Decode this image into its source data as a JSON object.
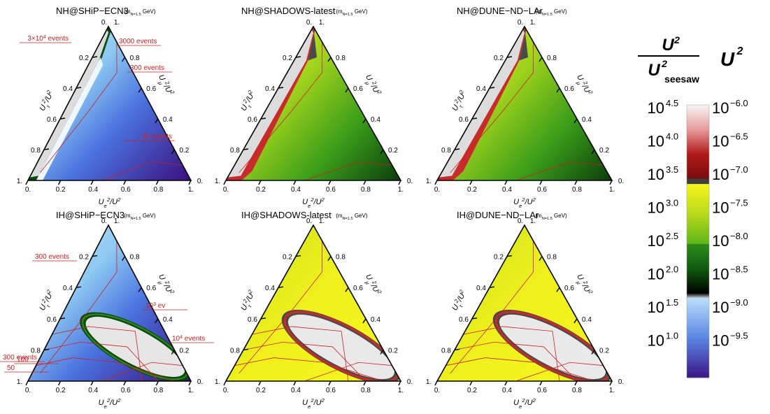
{
  "panels": [
    {
      "title": "NH@SHiP−ECN3",
      "mass": "(m_N=1.5 GeV)",
      "scheme": "blue",
      "events": [
        {
          "text": "3×10^4 events"
        },
        {
          "text": "3000 events"
        },
        {
          "text": "300 events"
        },
        {
          "text": "30 events"
        }
      ]
    },
    {
      "title": "NH@SHADOWS-latest",
      "mass": "(m_N=1.5 GeV)",
      "scheme": "green",
      "events": []
    },
    {
      "title": "NH@DUNE−ND−LAr",
      "mass": "(m_N=1.5 GeV)",
      "scheme": "green",
      "events": []
    },
    {
      "title": "IH@SHiP−ECN3",
      "mass": "(m_N=1.5 GeV)",
      "scheme": "blue",
      "events": [
        {
          "text": "300 events"
        },
        {
          "text": "10^3 ev"
        },
        {
          "text": "300 events"
        },
        {
          "text": "10^4 events"
        },
        {
          "text": "100"
        },
        {
          "text": "50"
        }
      ]
    },
    {
      "title": "IH@SHADOWS-latest",
      "mass": "(m_N=1.5 GeV)",
      "scheme": "yellow",
      "events": []
    },
    {
      "title": "IH@DUNE−ND−LAr",
      "mass": "(m_N=1.5 GeV)",
      "scheme": "yellow",
      "events": []
    }
  ],
  "axis_labels": {
    "x": "U_e^2/U^2",
    "left": "U_τ^2/U^2",
    "right": "U_μ^2/U^2"
  },
  "ticks_bottom": [
    "0.",
    "0.2",
    "0.4",
    "0.6",
    "0.8",
    "1."
  ],
  "ticks_left": [
    "0.8",
    "0.6",
    "0.4",
    "0.2"
  ],
  "ticks_right": [
    "0.8",
    "0.6",
    "0.4",
    "0.2"
  ],
  "corner_labels": {
    "top": "0.",
    "top_right": "1.",
    "left": "1.",
    "right": "0."
  },
  "colorbar": {
    "title_left_num": "U²",
    "title_left_den": "U²",
    "title_left_den_sub": "seesaw",
    "title_right": "U²",
    "left_labels": [
      {
        "base": "10",
        "exp": "4.5"
      },
      {
        "base": "10",
        "exp": "4.0"
      },
      {
        "base": "10",
        "exp": "3.5"
      },
      {
        "base": "10",
        "exp": "3.0"
      },
      {
        "base": "10",
        "exp": "2.5"
      },
      {
        "base": "10",
        "exp": "2.0"
      },
      {
        "base": "10",
        "exp": "1.5"
      },
      {
        "base": "10",
        "exp": "1.0"
      }
    ],
    "right_labels": [
      {
        "base": "10",
        "exp": "−6.0"
      },
      {
        "base": "10",
        "exp": "−6.5"
      },
      {
        "base": "10",
        "exp": "−7.0"
      },
      {
        "base": "10",
        "exp": "−7.5"
      },
      {
        "base": "10",
        "exp": "−8.0"
      },
      {
        "base": "10",
        "exp": "−8.5"
      },
      {
        "base": "10",
        "exp": "−9.0"
      },
      {
        "base": "10",
        "exp": "−9.5"
      }
    ]
  },
  "colors": {
    "white_gray": "#e9e9e9",
    "dark_gray": "#4a4a4a",
    "red": "#c92a2a",
    "yellow": "#f2f21a",
    "green": "#3aa51c",
    "dark_green": "#0a4d0a",
    "light_blue": "#9fd3f5",
    "blue": "#3f6fe0",
    "purple": "#3a0d7a",
    "contour": "#cc2020"
  },
  "chart_data": {
    "type": "heatmap",
    "description_axes": "ternary: U_e^2/U^2 (bottom), U_mu^2/U^2 (right), U_tau^2/U^2 (left)",
    "mass_GeV": 1.5,
    "colorbar_U2_range": [
      -9.5,
      -6.0
    ],
    "colorbar_ratio_range": [
      1.0,
      4.5
    ]
  }
}
